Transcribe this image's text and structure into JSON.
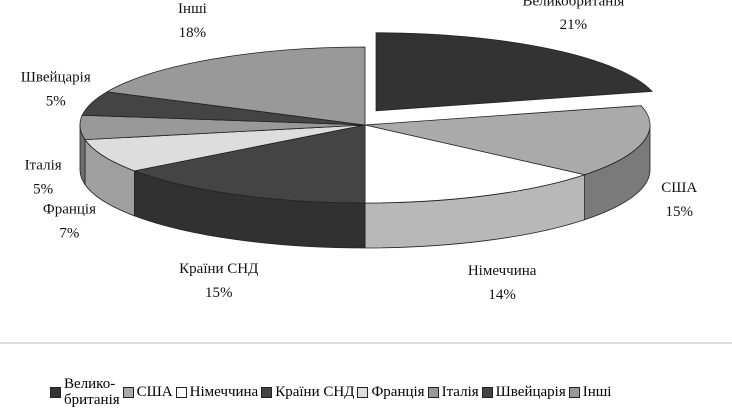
{
  "chart_data": {
    "type": "pie3d",
    "categories": [
      "Великобританія",
      "США",
      "Німеччина",
      "Країни СНД",
      "Франція",
      "Італія",
      "Швейцарія",
      "Інші"
    ],
    "legend": [
      "Велико-\nбританія",
      "США",
      "Німеччина",
      "Країни СНД",
      "Франція",
      "Італія",
      "Швейцарія",
      "Інші"
    ],
    "values": [
      21,
      15,
      14,
      15,
      7,
      5,
      5,
      18
    ],
    "value_labels": [
      "21%",
      "15%",
      "14%",
      "15%",
      "7%",
      "5%",
      "5%",
      "18%"
    ],
    "colors": [
      "#333333",
      "#aaaaaa",
      "#ffffff",
      "#444444",
      "#dddddd",
      "#999999",
      "#444444",
      "#999999"
    ],
    "explode": [
      1,
      0,
      0,
      0,
      0,
      0,
      0,
      0
    ]
  }
}
